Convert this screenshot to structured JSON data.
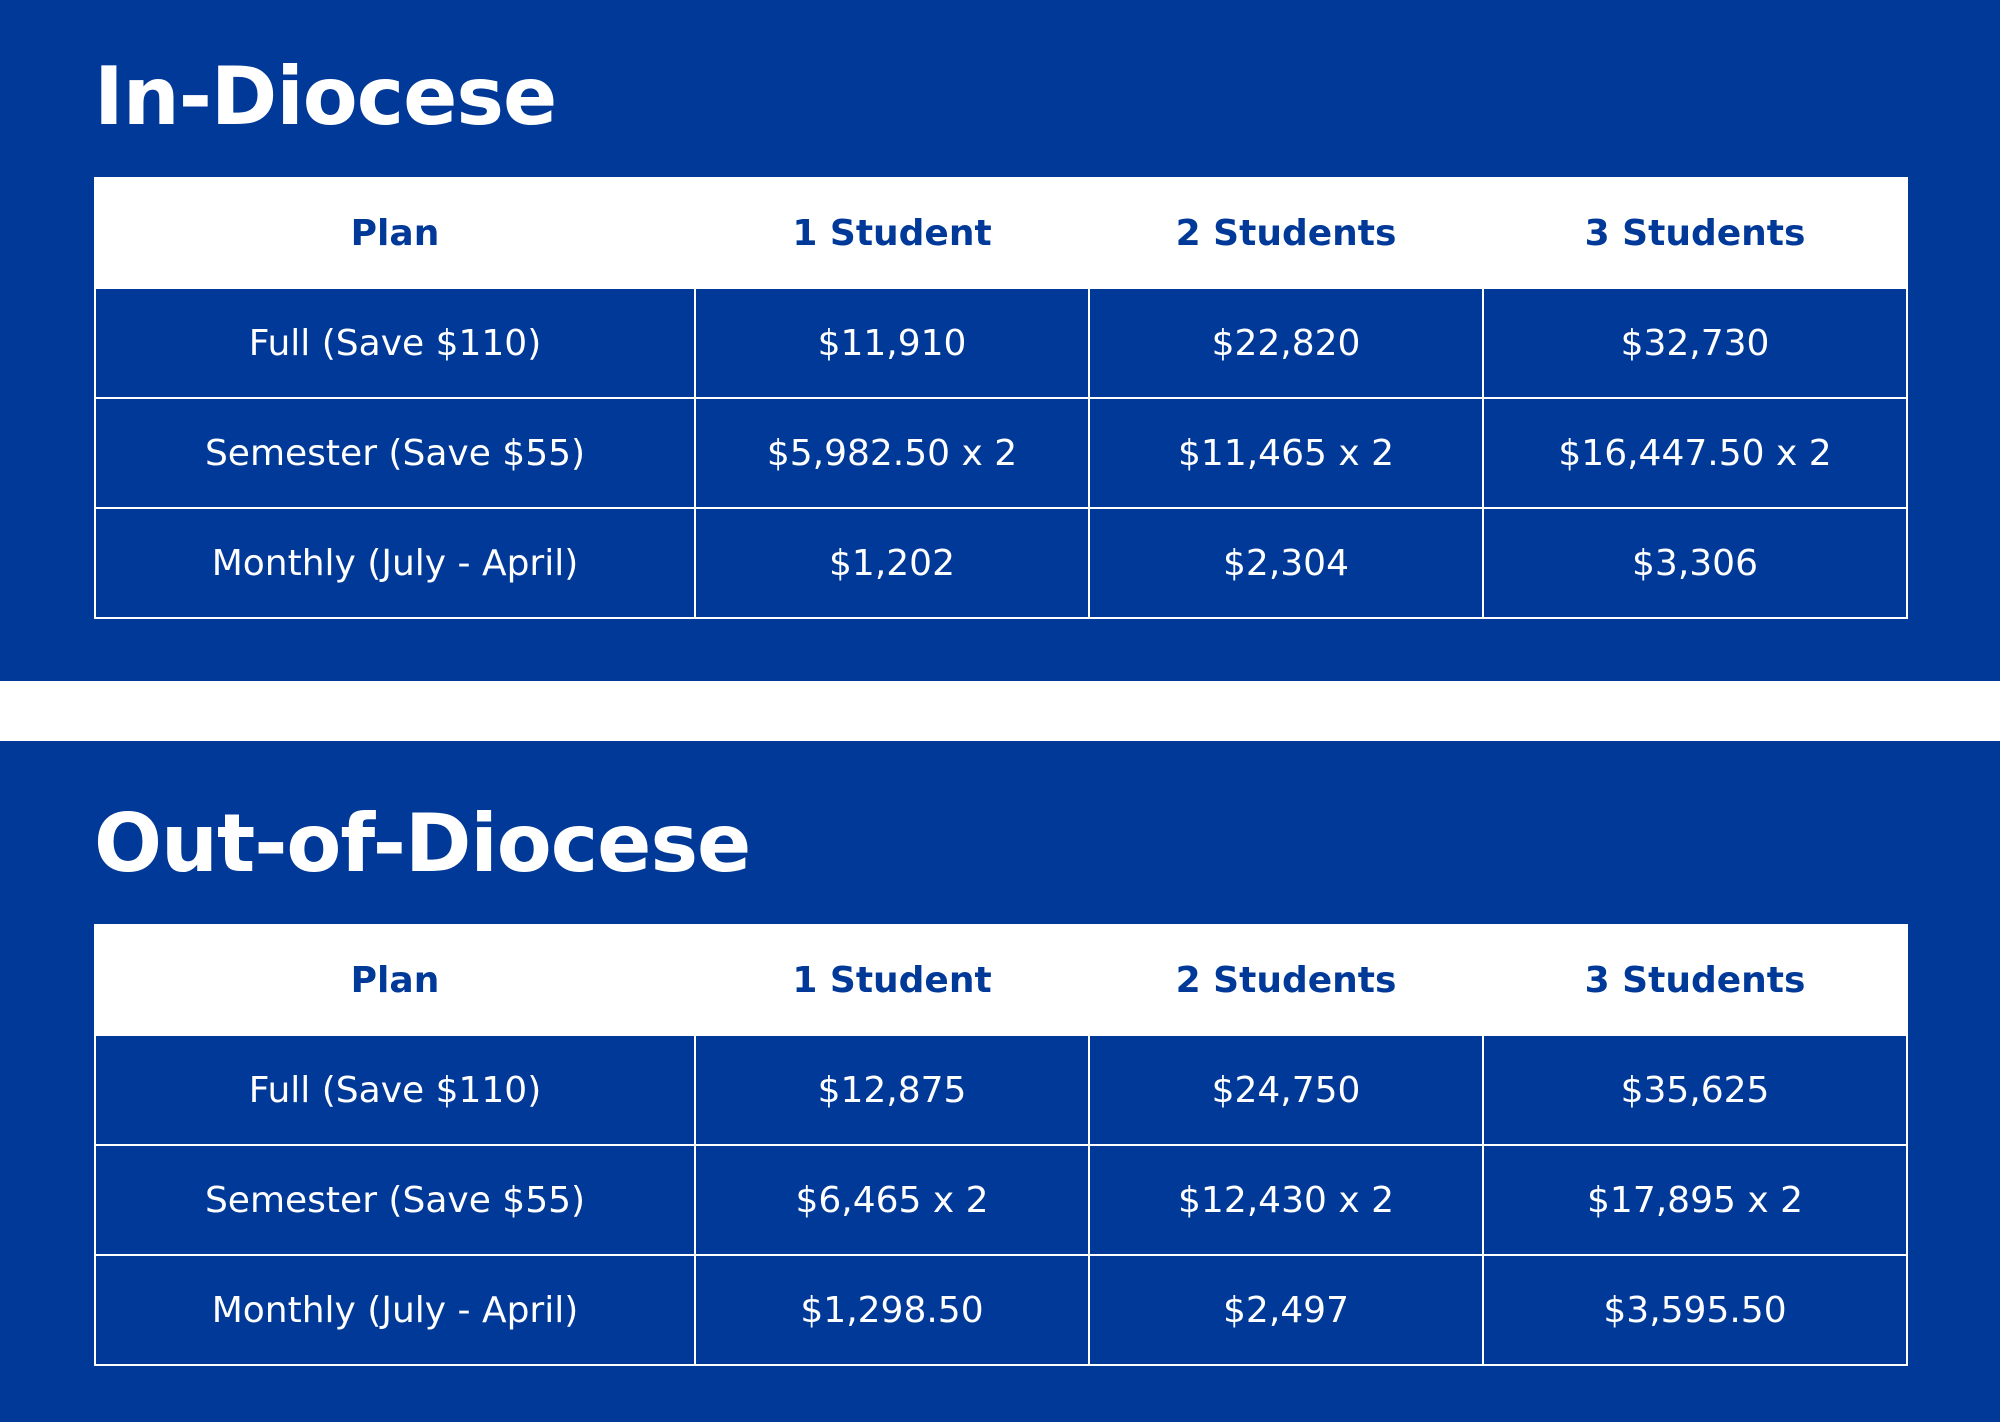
{
  "sections": [
    {
      "title": "In-Diocese",
      "headers": [
        "Plan",
        "1 Student",
        "2 Students",
        "3 Students"
      ],
      "rows": [
        [
          "Full (Save $110)",
          "$11,910",
          "$22,820",
          "$32,730"
        ],
        [
          "Semester (Save $55)",
          "$5,982.50 x 2",
          "$11,465 x 2",
          "$16,447.50 x 2"
        ],
        [
          "Monthly (July - April)",
          "$1,202",
          "$2,304",
          "$3,306"
        ]
      ]
    },
    {
      "title": "Out-of-Diocese",
      "headers": [
        "Plan",
        "1 Student",
        "2 Students",
        "3 Students"
      ],
      "rows": [
        [
          "Full (Save $110)",
          "$12,875",
          "$24,750",
          "$35,625"
        ],
        [
          "Semester (Save $55)",
          "$6,465 x 2",
          "$12,430 x 2",
          "$17,895 x 2"
        ],
        [
          "Monthly (July - April)",
          "$1,298.50",
          "$2,497",
          "$3,595.50"
        ]
      ]
    }
  ],
  "colors": {
    "panel_background": "#003998",
    "header_background": "#ffffff",
    "header_text": "#003998",
    "cell_text": "#ffffff",
    "page_background": "#ffffff"
  }
}
